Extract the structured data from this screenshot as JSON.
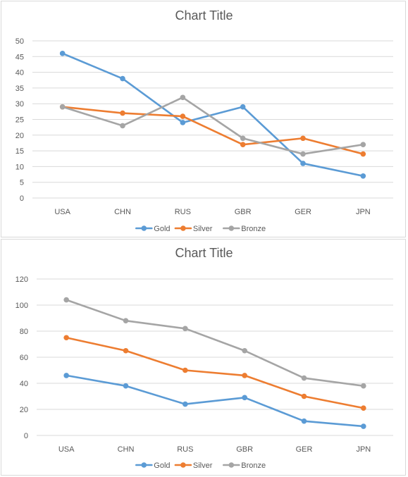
{
  "chart_data": [
    {
      "type": "line",
      "title": "Chart Title",
      "xlabel": "",
      "ylabel": "",
      "categories": [
        "USA",
        "CHN",
        "RUS",
        "GBR",
        "GER",
        "JPN"
      ],
      "series": [
        {
          "name": "Gold",
          "values": [
            46,
            38,
            24,
            29,
            11,
            7
          ],
          "color": "#5b9bd5"
        },
        {
          "name": "Silver",
          "values": [
            29,
            27,
            26,
            17,
            19,
            14
          ],
          "color": "#ed7d31"
        },
        {
          "name": "Bronze",
          "values": [
            29,
            23,
            32,
            19,
            14,
            17
          ],
          "color": "#a5a5a5"
        }
      ],
      "ylim": [
        0,
        50
      ],
      "yticks": [
        "0",
        "5",
        "10",
        "15",
        "20",
        "25",
        "30",
        "35",
        "40",
        "45",
        "50"
      ],
      "stacked": false,
      "grid": true,
      "legend_position": "bottom"
    },
    {
      "type": "line",
      "title": "Chart Title",
      "xlabel": "",
      "ylabel": "",
      "categories": [
        "USA",
        "CHN",
        "RUS",
        "GBR",
        "GER",
        "JPN"
      ],
      "series": [
        {
          "name": "Gold",
          "values": [
            46,
            38,
            24,
            29,
            11,
            7
          ],
          "color": "#5b9bd5"
        },
        {
          "name": "Silver",
          "values": [
            29,
            27,
            26,
            17,
            19,
            14
          ],
          "color": "#ed7d31"
        },
        {
          "name": "Bronze",
          "values": [
            29,
            23,
            32,
            19,
            14,
            17
          ],
          "color": "#a5a5a5"
        }
      ],
      "ylim": [
        0,
        120
      ],
      "yticks": [
        "0",
        "20",
        "40",
        "60",
        "80",
        "100",
        "120"
      ],
      "stacked": true,
      "grid": true,
      "legend_position": "bottom"
    }
  ]
}
